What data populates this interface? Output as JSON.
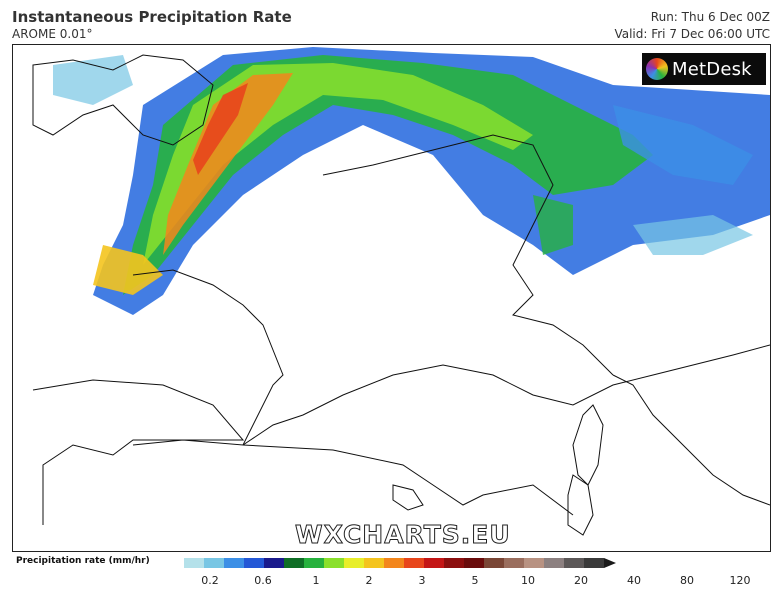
{
  "header": {
    "title": "Instantaneous Precipitation Rate",
    "model": "AROME 0.01°",
    "run": "Run: Thu 6 Dec 00Z",
    "valid": "Valid: Fri 7 Dec 06:00 UTC"
  },
  "brand": {
    "logo_text": "MetDesk",
    "watermark": "WXCHARTS.EU"
  },
  "legend": {
    "label": "Precipitation rate (mm/hr)",
    "colors": [
      "#b4e1ea",
      "#78c6e4",
      "#3c8fe6",
      "#2458d6",
      "#1a1a8c",
      "#0f6e26",
      "#27b23e",
      "#8ae02c",
      "#e8ee2a",
      "#f4c41e",
      "#f3861c",
      "#e8461c",
      "#c41616",
      "#8c0f0f",
      "#6a0c0c",
      "#7a4636",
      "#9a6e5e",
      "#b89282",
      "#8c8080",
      "#5c5858",
      "#3a3a3a"
    ],
    "ticks": [
      "0.2",
      "0.6",
      "1",
      "2",
      "3",
      "5",
      "10",
      "20",
      "40",
      "80",
      "120"
    ]
  },
  "map": {
    "region": "France / Western Europe",
    "precip_band": "SW-NE frontal band from Brittany across Channel, Benelux to Germany"
  }
}
